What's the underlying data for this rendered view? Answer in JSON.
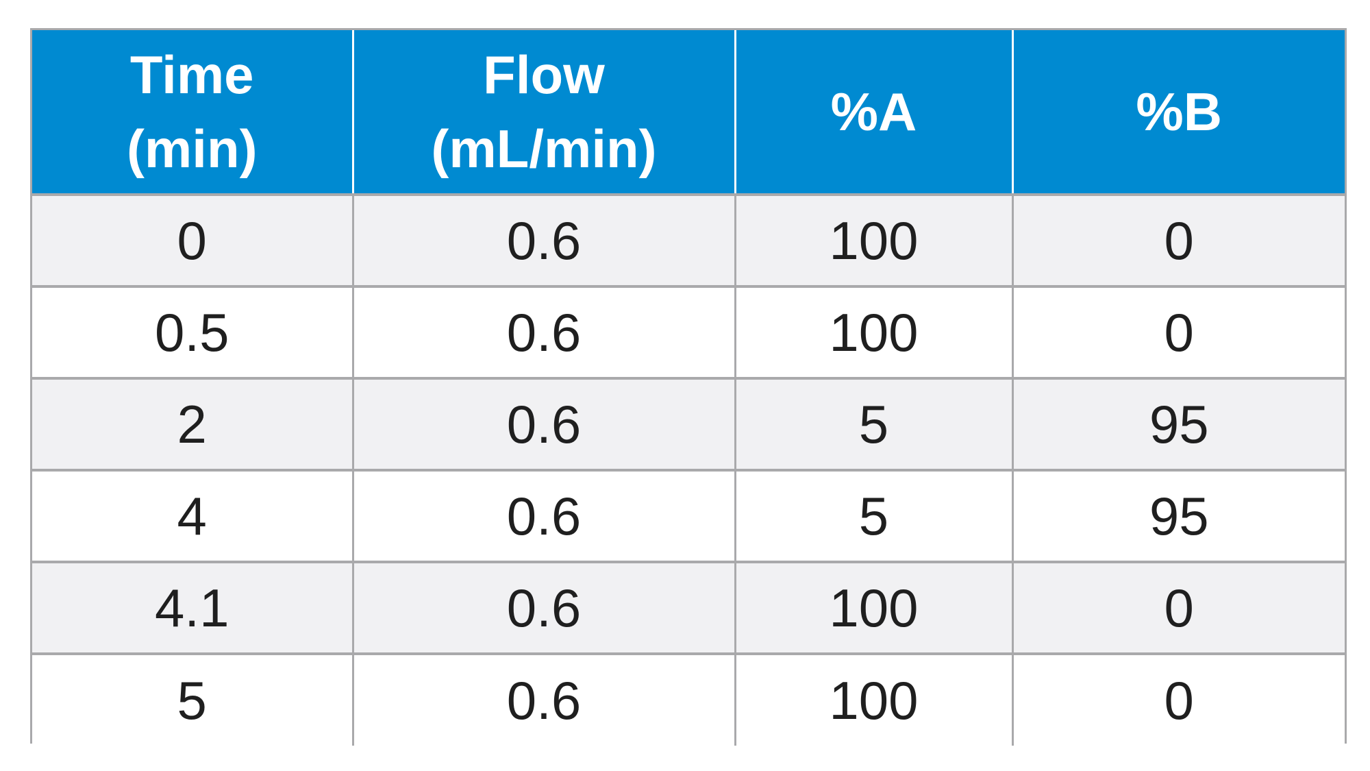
{
  "header": {
    "time": [
      "Time",
      "(min)"
    ],
    "flow": [
      "Flow",
      "(mL/min)"
    ],
    "percent_a": "%A",
    "percent_b": "%B"
  },
  "rows": [
    {
      "time": "0",
      "flow": "0.6",
      "a": "100",
      "b": "0"
    },
    {
      "time": "0.5",
      "flow": "0.6",
      "a": "100",
      "b": "0"
    },
    {
      "time": "2",
      "flow": "0.6",
      "a": "5",
      "b": "95"
    },
    {
      "time": "4",
      "flow": "0.6",
      "a": "5",
      "b": "95"
    },
    {
      "time": "4.1",
      "flow": "0.6",
      "a": "100",
      "b": "0"
    },
    {
      "time": "5",
      "flow": "0.6",
      "a": "100",
      "b": "0"
    }
  ],
  "colors": {
    "header_bg": "#008ad1",
    "header_text": "#ffffff",
    "row_shaded": "#f1f1f3",
    "row_plain": "#ffffff",
    "grid": "#a9a9ab",
    "cell_text": "#1f1f1f"
  }
}
